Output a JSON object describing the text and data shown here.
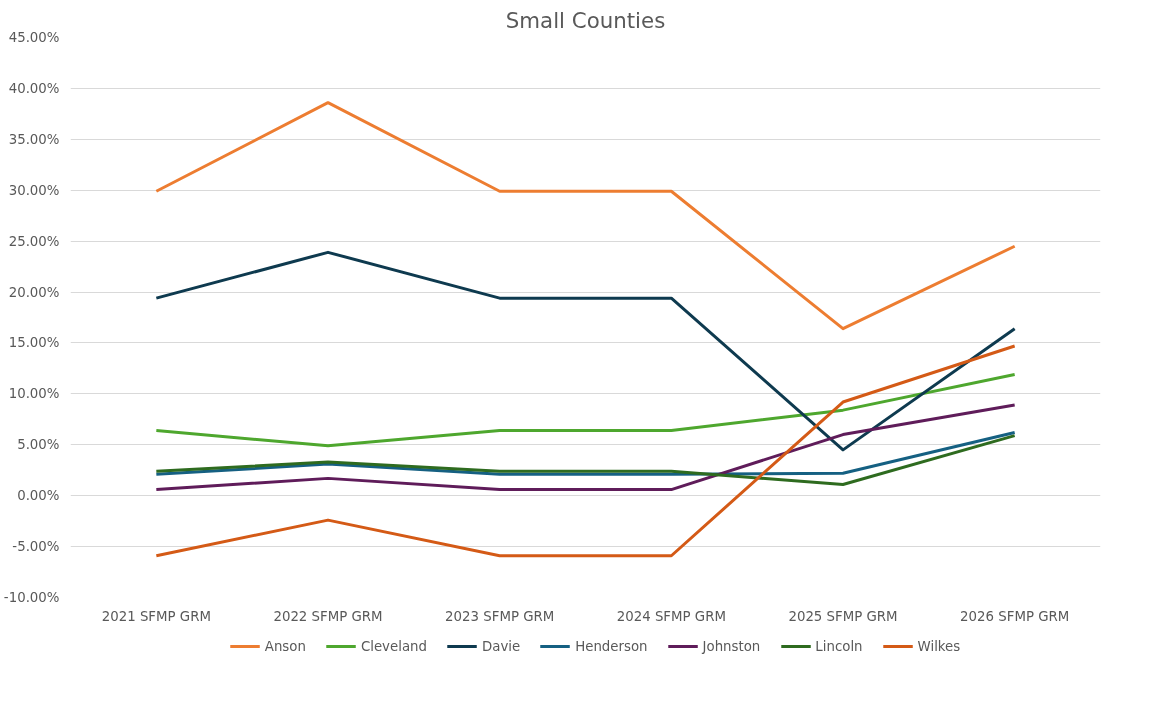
{
  "chart_data": {
    "type": "line",
    "title": "Small Counties",
    "categories": [
      "2021 SFMP GRM",
      "2022 SFMP GRM",
      "2023 SFMP GRM",
      "2024 SFMP GRM",
      "2025 SFMP GRM",
      "2026 SFMP GRM"
    ],
    "series": [
      {
        "name": "Anson",
        "color": "#ed7d31",
        "values": [
          29.9,
          38.6,
          29.9,
          29.9,
          16.4,
          24.5
        ]
      },
      {
        "name": "Cleveland",
        "color": "#4ea72e",
        "values": [
          6.4,
          4.9,
          6.4,
          6.4,
          8.4,
          11.9
        ]
      },
      {
        "name": "Davie",
        "color": "#0e3a4f",
        "values": [
          19.4,
          23.9,
          19.4,
          19.4,
          4.5,
          16.4
        ]
      },
      {
        "name": "Henderson",
        "color": "#156082",
        "values": [
          2.1,
          3.1,
          2.1,
          2.1,
          2.2,
          6.2
        ]
      },
      {
        "name": "Johnston",
        "color": "#5f1c5a",
        "values": [
          0.6,
          1.7,
          0.6,
          0.6,
          6.0,
          8.9
        ]
      },
      {
        "name": "Lincoln",
        "color": "#2e6b1f",
        "values": [
          2.4,
          3.3,
          2.4,
          2.4,
          1.1,
          5.9
        ]
      },
      {
        "name": "Wilkes",
        "color": "#d45a16",
        "values": [
          -5.9,
          -2.4,
          -5.9,
          -5.9,
          9.2,
          14.7
        ]
      }
    ],
    "ylim": [
      -10,
      45
    ],
    "yticks": [
      {
        "value": -10,
        "label": "-10.00%"
      },
      {
        "value": -5,
        "label": "-5.00%"
      },
      {
        "value": 0,
        "label": "0.00%"
      },
      {
        "value": 5,
        "label": "5.00%"
      },
      {
        "value": 10,
        "label": "10.00%"
      },
      {
        "value": 15,
        "label": "15.00%"
      },
      {
        "value": 20,
        "label": "20.00%"
      },
      {
        "value": 25,
        "label": "25.00%"
      },
      {
        "value": 30,
        "label": "30.00%"
      },
      {
        "value": 35,
        "label": "35.00%"
      },
      {
        "value": 40,
        "label": "40.00%"
      },
      {
        "value": 45,
        "label": "45.00%"
      }
    ],
    "grid": "y",
    "legend": "bottom",
    "marker": "none",
    "line_style": "solid"
  }
}
